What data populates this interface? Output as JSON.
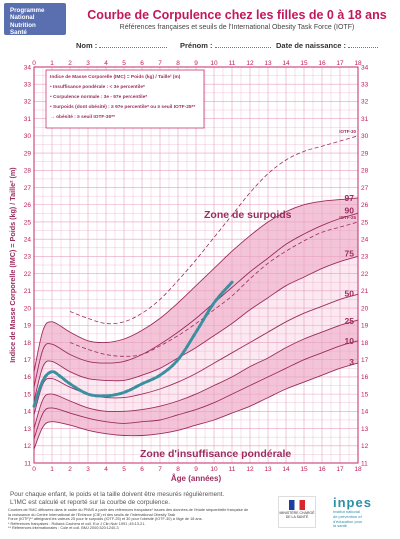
{
  "logo": {
    "line1": "Programme",
    "line2": "National",
    "line3": "Nutrition",
    "line4": "Santé"
  },
  "header": {
    "title": "Courbe de Corpulence chez les filles de 0 à 18 ans",
    "subtitle": "Références françaises et seuils de l'International Obesity Task Force (IOTF)",
    "nom_label": "Nom :",
    "prenom_label": "Prénom :",
    "date_label": "Date de naissance :"
  },
  "legend": {
    "line1": "Indice de Masse Corporelle (IMC) = Poids (kg) / Taille² (m)",
    "line2": "• Insuffisance pondérale : < 3e percentile*",
    "line3": "• Corpulence normale : 3e - 97e percentile*",
    "line4": "• Surpoids (dont obésité) : ≥ 97e percentile* ou ≥ seuil IOTF-25**",
    "line5": "  → obésité : ≥ seuil IOTF-30**"
  },
  "zones": {
    "surpoids": "Zone de surpoids",
    "insuffisance": "Zone d'insuffisance pondérale"
  },
  "colors": {
    "accent": "#c2185b",
    "grid": "#e8a0bf",
    "band_normal": "#f3c4d8",
    "band_light": "#fbe8f0",
    "patient": "#3a8fa0",
    "percentile": "#9b2d5e"
  },
  "chart_data": {
    "type": "line",
    "xlabel": "Âge (années)",
    "ylabel": "Indice de Masse Corporelle (IMC) = Poids (kg) / Taille² (m)",
    "xlim": [
      0,
      18
    ],
    "ylim": [
      11,
      34
    ],
    "x_ticks": [
      0,
      1,
      2,
      3,
      4,
      5,
      6,
      7,
      8,
      9,
      10,
      11,
      12,
      13,
      14,
      15,
      16,
      17,
      18
    ],
    "y_ticks": [
      11,
      12,
      13,
      14,
      15,
      16,
      17,
      18,
      19,
      20,
      21,
      22,
      23,
      24,
      25,
      26,
      27,
      28,
      29,
      30,
      31,
      32,
      33,
      34
    ],
    "grid": true,
    "x": [
      0,
      0.5,
      1,
      2,
      3,
      4,
      5,
      6,
      7,
      8,
      9,
      10,
      11,
      12,
      13,
      14,
      15,
      16,
      17,
      18
    ],
    "series": [
      {
        "name": "3",
        "values": [
          11.8,
          13.1,
          13.4,
          13.2,
          12.9,
          12.7,
          12.6,
          12.6,
          12.7,
          12.9,
          13.2,
          13.5,
          13.9,
          14.3,
          14.8,
          15.3,
          15.7,
          16.1,
          16.5,
          16.8
        ]
      },
      {
        "name": "10",
        "values": [
          12.4,
          13.9,
          14.2,
          13.9,
          13.6,
          13.4,
          13.3,
          13.4,
          13.5,
          13.8,
          14.1,
          14.5,
          15.0,
          15.5,
          16.0,
          16.5,
          17.0,
          17.4,
          17.8,
          18.1
        ]
      },
      {
        "name": "25",
        "values": [
          13.0,
          14.7,
          15.0,
          14.6,
          14.2,
          14.0,
          14.0,
          14.1,
          14.3,
          14.6,
          15.0,
          15.5,
          16.0,
          16.6,
          17.1,
          17.7,
          18.2,
          18.6,
          19.0,
          19.3
        ]
      },
      {
        "name": "50",
        "values": [
          13.8,
          15.6,
          15.9,
          15.4,
          15.0,
          14.8,
          14.8,
          15.0,
          15.3,
          15.7,
          16.2,
          16.8,
          17.4,
          18.0,
          18.6,
          19.2,
          19.7,
          20.1,
          20.5,
          20.8
        ]
      },
      {
        "name": "75",
        "values": [
          14.6,
          16.6,
          16.9,
          16.3,
          15.9,
          15.8,
          15.8,
          16.1,
          16.5,
          17.1,
          17.7,
          18.4,
          19.1,
          19.9,
          20.6,
          21.3,
          21.8,
          22.3,
          22.7,
          23.0
        ]
      },
      {
        "name": "90",
        "values": [
          15.4,
          17.6,
          17.9,
          17.3,
          16.9,
          16.8,
          16.9,
          17.3,
          17.9,
          18.6,
          19.4,
          20.3,
          21.2,
          22.1,
          22.9,
          23.7,
          24.3,
          24.8,
          25.2,
          25.5
        ]
      },
      {
        "name": "97",
        "values": [
          16.3,
          18.7,
          19.2,
          18.6,
          18.1,
          18.0,
          18.2,
          18.7,
          19.4,
          20.3,
          21.3,
          22.3,
          23.3,
          24.2,
          25.0,
          25.6,
          26.0,
          26.2,
          26.3,
          26.4
        ]
      },
      {
        "name": "IOTF-25",
        "x": [
          2,
          3,
          4,
          5,
          6,
          7,
          8,
          9,
          10,
          11,
          12,
          13,
          14,
          15,
          16,
          17,
          18
        ],
        "values": [
          18.0,
          17.6,
          17.3,
          17.2,
          17.3,
          17.8,
          18.4,
          19.1,
          19.9,
          20.7,
          21.7,
          22.6,
          23.3,
          23.9,
          24.4,
          24.7,
          25.0
        ]
      },
      {
        "name": "IOTF-30",
        "x": [
          2,
          3,
          4,
          5,
          6,
          7,
          8,
          9,
          10,
          11,
          12,
          13,
          14,
          15,
          16,
          17,
          18
        ],
        "values": [
          19.8,
          19.4,
          19.1,
          19.2,
          19.7,
          20.5,
          21.6,
          22.8,
          24.1,
          25.4,
          26.7,
          27.8,
          28.6,
          29.1,
          29.4,
          29.7,
          30.0
        ]
      },
      {
        "name": "patient",
        "x": [
          0,
          0.5,
          1,
          1.5,
          2,
          3,
          4,
          5,
          6,
          7,
          8,
          9,
          10,
          11
        ],
        "values": [
          14.3,
          15.8,
          16.3,
          16.0,
          15.6,
          15.0,
          14.9,
          15.1,
          15.6,
          16.1,
          17.0,
          18.6,
          20.3,
          21.5
        ]
      }
    ]
  },
  "footer": {
    "main1": "Pour chaque enfant, le poids et la taille doivent être mesurés régulièrement.",
    "main2": "L'IMC est calculé et reporté sur la courbe de corpulence.",
    "small1": "Courbes de l'IMC diffusées dans le cadre du PNNS à partir des références françaises* issues des données de l'étude séquentielle française de",
    "small2": "la croissance du Centre International de l'Enfance (CIE) et des seuils de l'International Obesity Task",
    "small3": "Force (IOTF)** atteignant les valeurs 25 pour le surpoids (IOTF-25) et 30 pour l'obésité (IOTF-30) à l'âge de 18 ans.",
    "small4": "* Références françaises : Rolland-Cachera et coll. Eur J Clin Nutr 1991 ;45:13-21.",
    "small5": "** Références internationales : Cole et coll. BMJ 2000;320:1240-3",
    "ministry": "MINISTÈRE CHARGÉ DE LA SANTÉ",
    "inpes_word": "inpes",
    "inpes_line1": "Institut national",
    "inpes_line2": "de prévention et",
    "inpes_line3": "d'éducation pour",
    "inpes_line4": "la santé"
  }
}
